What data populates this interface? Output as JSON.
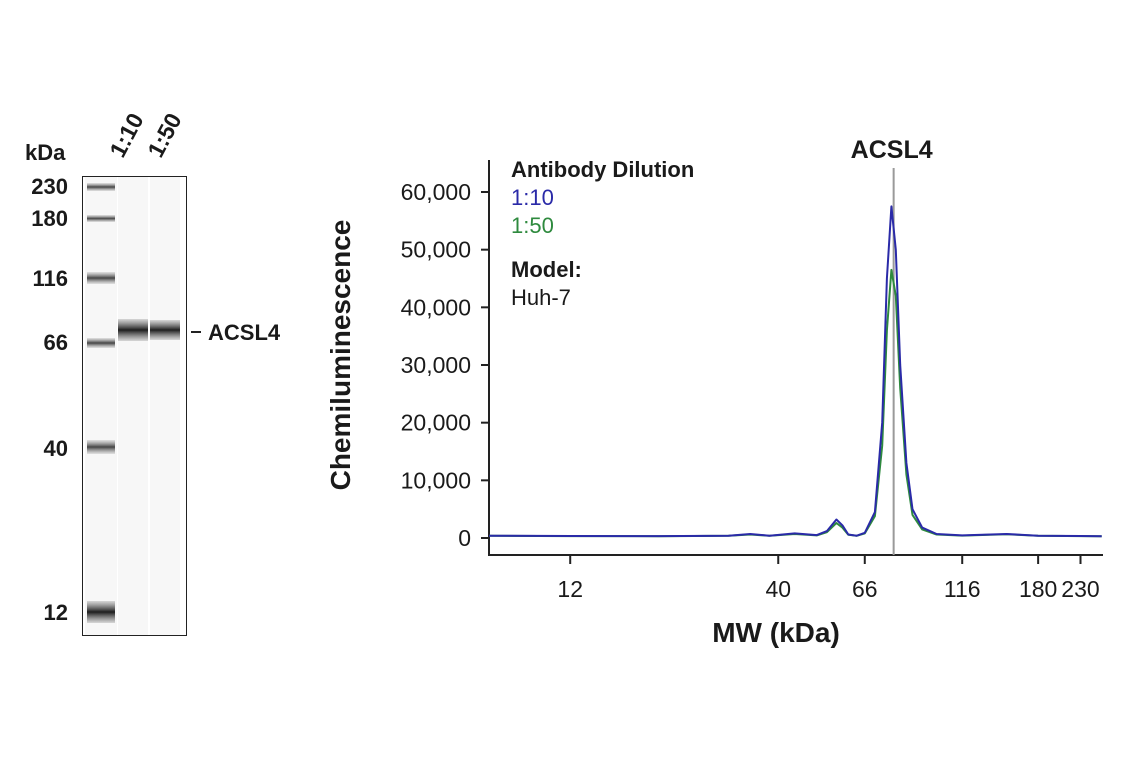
{
  "gel": {
    "unit_label": "kDa",
    "lanes": [
      "1:10",
      "1:50"
    ],
    "ladder_markers": [
      "230",
      "180",
      "116",
      "66",
      "40",
      "12"
    ],
    "band_label": "ACSL4"
  },
  "chart_data": {
    "type": "line",
    "xlabel": "MW (kDa)",
    "ylabel": "Chemiluminescence",
    "x_scale": "log",
    "x_ticks": [
      "12",
      "40",
      "66",
      "116",
      "180",
      "230"
    ],
    "y_ticks": [
      "0",
      "10,000",
      "20,000",
      "30,000",
      "40,000",
      "50,000",
      "60,000"
    ],
    "ylim": [
      0,
      67000
    ],
    "marker_line": {
      "label": "ACSL4",
      "x": 78
    },
    "legend": {
      "title": "Antibody Dilution",
      "model_label": "Model:",
      "model_value": "Huh-7"
    },
    "series": [
      {
        "name": "1:10",
        "color": "#2a2aa8",
        "points": [
          [
            7.5,
            400
          ],
          [
            12,
            350
          ],
          [
            20,
            330
          ],
          [
            30,
            400
          ],
          [
            34,
            700
          ],
          [
            38,
            400
          ],
          [
            44,
            800
          ],
          [
            50,
            500
          ],
          [
            53,
            1200
          ],
          [
            56,
            3200
          ],
          [
            58,
            2200
          ],
          [
            60,
            600
          ],
          [
            63,
            400
          ],
          [
            66,
            900
          ],
          [
            70,
            4500
          ],
          [
            73,
            20000
          ],
          [
            75,
            45000
          ],
          [
            77,
            57500
          ],
          [
            79,
            50000
          ],
          [
            81,
            30000
          ],
          [
            84,
            13000
          ],
          [
            87,
            5000
          ],
          [
            92,
            1800
          ],
          [
            100,
            700
          ],
          [
            116,
            450
          ],
          [
            150,
            700
          ],
          [
            180,
            400
          ],
          [
            230,
            350
          ],
          [
            260,
            320
          ]
        ]
      },
      {
        "name": "1:50",
        "color": "#2e8a3e",
        "points": [
          [
            7.5,
            380
          ],
          [
            12,
            330
          ],
          [
            20,
            310
          ],
          [
            30,
            380
          ],
          [
            34,
            600
          ],
          [
            38,
            380
          ],
          [
            44,
            700
          ],
          [
            50,
            450
          ],
          [
            53,
            1000
          ],
          [
            56,
            2600
          ],
          [
            58,
            1800
          ],
          [
            60,
            550
          ],
          [
            63,
            380
          ],
          [
            66,
            800
          ],
          [
            70,
            3800
          ],
          [
            73,
            16000
          ],
          [
            75,
            36000
          ],
          [
            77,
            46500
          ],
          [
            79,
            42000
          ],
          [
            81,
            26000
          ],
          [
            84,
            11000
          ],
          [
            87,
            4000
          ],
          [
            92,
            1500
          ],
          [
            100,
            600
          ],
          [
            116,
            420
          ],
          [
            150,
            650
          ],
          [
            180,
            380
          ],
          [
            230,
            330
          ],
          [
            260,
            300
          ]
        ]
      }
    ]
  }
}
